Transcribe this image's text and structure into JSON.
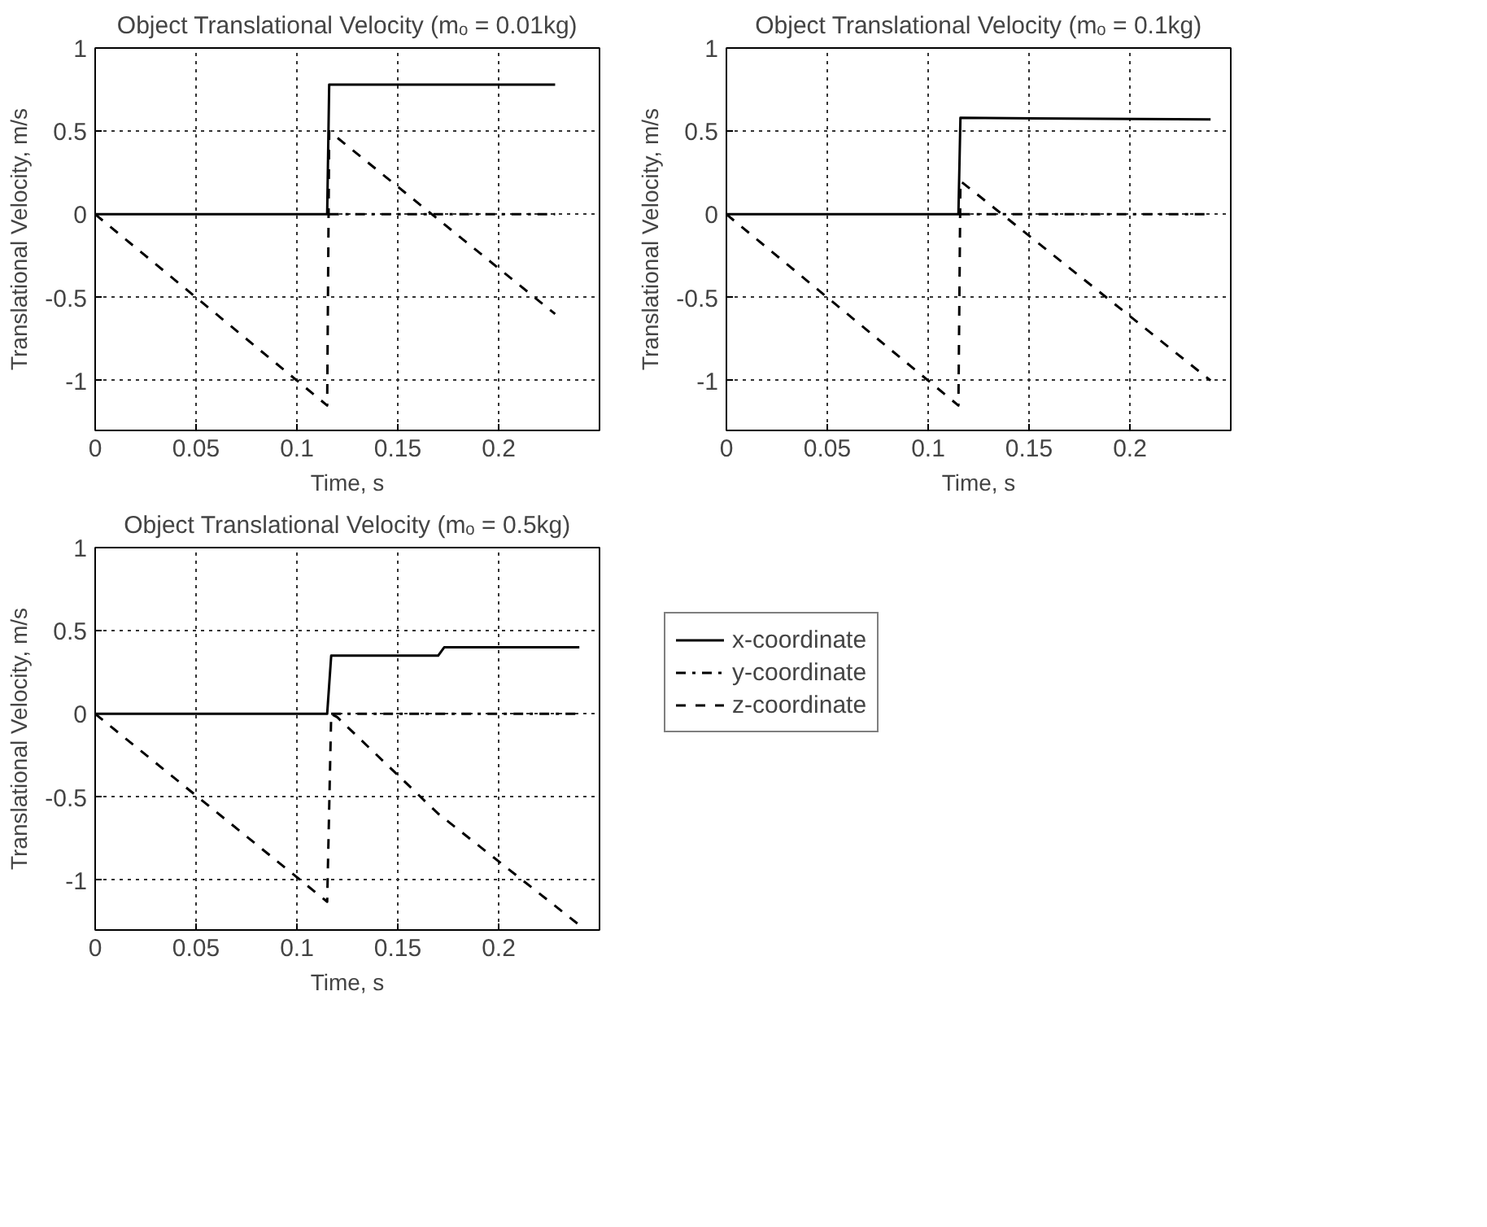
{
  "chart_data": [
    {
      "type": "line",
      "title": "Object Translational Velocity (mₒ = 0.01kg)",
      "xlabel": "Time, s",
      "ylabel": "Translational Velocity, m/s",
      "xlim": [
        0,
        0.25
      ],
      "ylim": [
        -1.3,
        1
      ],
      "xticks": [
        0,
        0.05,
        0.1,
        0.15,
        0.2
      ],
      "yticks": [
        -1,
        -0.5,
        0,
        0.5,
        1
      ],
      "grid": true,
      "series": [
        {
          "color": "#000000",
          "line_style": "solid",
          "x": [
            0,
            0.115,
            0.116,
            0.228
          ],
          "values": [
            0,
            0,
            0.78,
            0.78
          ]
        },
        {
          "color": "#000000",
          "line_style": "dashdot",
          "x": [
            0.116,
            0.228
          ],
          "values": [
            0,
            0
          ]
        },
        {
          "color": "#000000",
          "line_style": "dashed",
          "x": [
            0,
            0.115,
            0.116,
            0.228
          ],
          "values": [
            0,
            -1.15,
            0.5,
            -0.6
          ]
        }
      ]
    },
    {
      "type": "line",
      "title": "Object Translational Velocity (mₒ = 0.1kg)",
      "xlabel": "Time, s",
      "ylabel": "Translational Velocity, m/s",
      "xlim": [
        0,
        0.25
      ],
      "ylim": [
        -1.3,
        1
      ],
      "xticks": [
        0,
        0.05,
        0.1,
        0.15,
        0.2
      ],
      "yticks": [
        -1,
        -0.5,
        0,
        0.5,
        1
      ],
      "grid": true,
      "series": [
        {
          "color": "#000000",
          "line_style": "solid",
          "x": [
            0,
            0.115,
            0.116,
            0.24
          ],
          "values": [
            0,
            0,
            0.58,
            0.57
          ]
        },
        {
          "color": "#000000",
          "line_style": "dashdot",
          "x": [
            0.116,
            0.24
          ],
          "values": [
            0,
            0
          ]
        },
        {
          "color": "#000000",
          "line_style": "dashed",
          "x": [
            0,
            0.115,
            0.116,
            0.24
          ],
          "values": [
            0,
            -1.15,
            0.2,
            -1.0
          ]
        }
      ]
    },
    {
      "type": "line",
      "title": "Object Translational Velocity (mₒ = 0.5kg)",
      "xlabel": "Time, s",
      "ylabel": "Translational Velocity, m/s",
      "xlim": [
        0,
        0.25
      ],
      "ylim": [
        -1.3,
        1
      ],
      "xticks": [
        0,
        0.05,
        0.1,
        0.15,
        0.2
      ],
      "yticks": [
        -1,
        -0.5,
        0,
        0.5,
        1
      ],
      "grid": true,
      "legend": "right",
      "series": [
        {
          "name": "x-coordinate",
          "color": "#000000",
          "line_style": "solid",
          "x": [
            0,
            0.115,
            0.117,
            0.17,
            0.173,
            0.24
          ],
          "values": [
            0,
            0,
            0.35,
            0.35,
            0.4,
            0.4
          ]
        },
        {
          "name": "y-coordinate",
          "color": "#000000",
          "line_style": "dashdot",
          "x": [
            0.117,
            0.24
          ],
          "values": [
            0,
            0
          ]
        },
        {
          "name": "z-coordinate",
          "color": "#000000",
          "line_style": "dashed",
          "x": [
            0,
            0.115,
            0.117,
            0.12,
            0.17,
            0.24
          ],
          "values": [
            0,
            -1.13,
            0,
            -0.02,
            -0.6,
            -1.27
          ]
        }
      ]
    }
  ]
}
